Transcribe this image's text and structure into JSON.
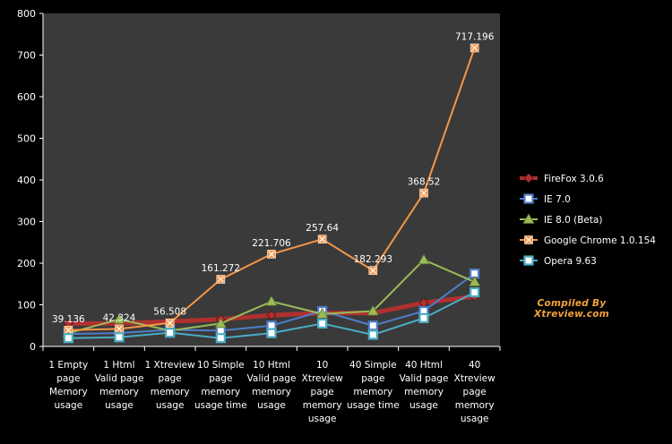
{
  "chart_data": {
    "type": "line",
    "categories": [
      "1 Empty page Memory usage",
      "1 Html Valid page memory usage",
      "1 Xtreview page memory usage",
      "10 Simple page memory usage time",
      "10 Html Valid page memory usage",
      "10 Xtreview page memory usage",
      "40 Simple page memory usage time",
      "40 Html Valid page memory usage",
      "40 Xtreview page memory usage"
    ],
    "series": [
      {
        "name": "FireFox 3.0.6",
        "color": "#b03030",
        "marker": "diamond",
        "values": [
          55,
          55,
          60,
          65,
          75,
          80,
          80,
          105,
          120
        ]
      },
      {
        "name": "IE 7.0",
        "color": "#4f7ec8",
        "marker": "square",
        "values": [
          30,
          32,
          40,
          38,
          50,
          85,
          50,
          85,
          175
        ]
      },
      {
        "name": "IE 8.0 (Beta)",
        "color": "#9bbb59",
        "marker": "triangle",
        "values": [
          32,
          65,
          38,
          55,
          108,
          78,
          85,
          208,
          155
        ]
      },
      {
        "name": "Google Chrome 1.0.154",
        "color": "#f79646",
        "marker": "x-square",
        "values": [
          39.136,
          42.324,
          56.508,
          161.272,
          221.706,
          257.64,
          182.293,
          368.52,
          717.196
        ]
      },
      {
        "name": "Opera 9.63",
        "color": "#4bacc6",
        "marker": "square",
        "values": [
          20,
          22,
          33,
          20,
          32,
          55,
          28,
          68,
          130
        ]
      }
    ],
    "data_labels": {
      "series": "Google Chrome 1.0.154",
      "labels": [
        "39.136",
        "42.324",
        "56.508",
        "161.272",
        "221.706",
        "257.64",
        "182.293",
        "368.52",
        "717.196"
      ]
    },
    "y_ticks": [
      "0",
      "100",
      "200",
      "300",
      "400",
      "500",
      "600",
      "700",
      "800"
    ],
    "ylim": [
      0,
      800
    ],
    "grid": false,
    "legend": "right",
    "annotation": {
      "line1": "Compiled By",
      "line2": "Xtreview.com"
    },
    "colors": {
      "plot_background": "#3a3a3a",
      "page_background": "#000000",
      "axis": "#ffffff"
    }
  }
}
